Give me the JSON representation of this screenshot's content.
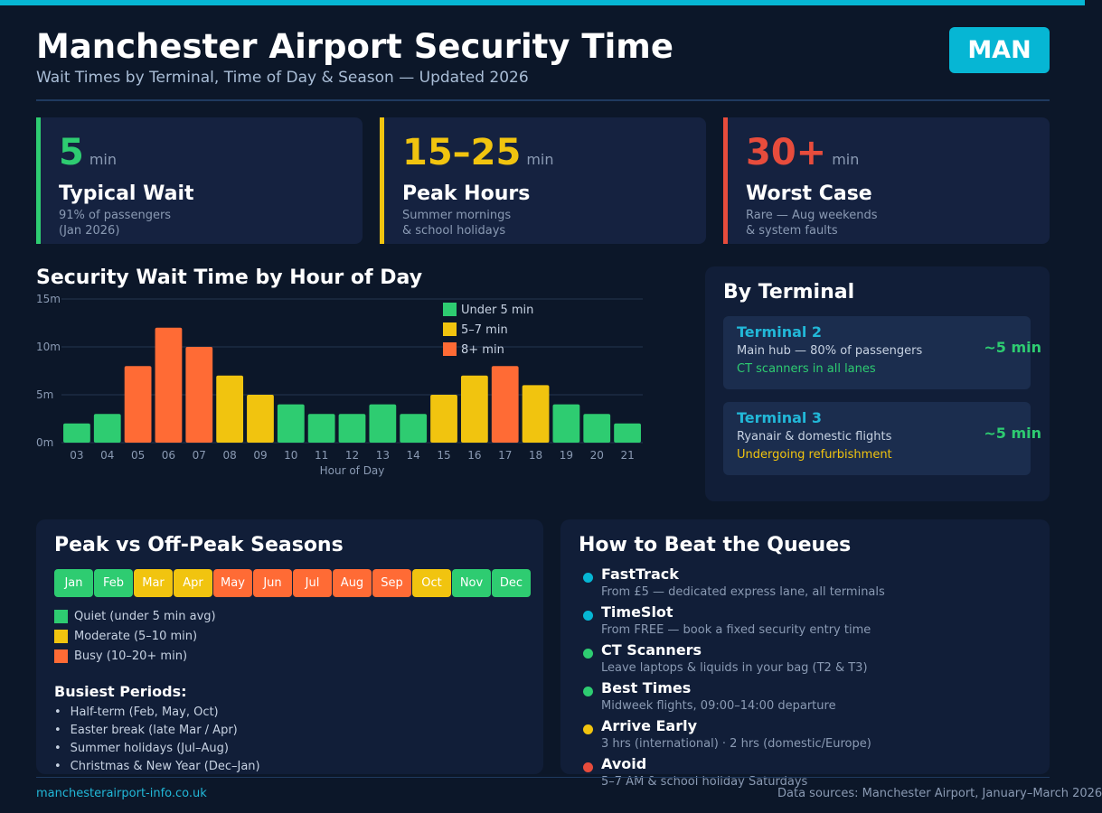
{
  "header": {
    "title": "Manchester Airport Security Time",
    "subtitle": "Wait Times by Terminal, Time of Day & Season — Updated 2026",
    "badge": "MAN"
  },
  "stats": [
    {
      "value": "5",
      "unit": "min",
      "label": "Typical Wait",
      "note1": "91% of passengers",
      "note2": "(Jan 2026)",
      "color": "#2ecc71"
    },
    {
      "value": "15–25",
      "unit": "min",
      "label": "Peak Hours",
      "note1": "Summer mornings",
      "note2": "& school holidays",
      "color": "#f1c40f"
    },
    {
      "value": "30+",
      "unit": "min",
      "label": "Worst Case",
      "note1": "Rare — Aug weekends",
      "note2": "& system faults",
      "color": "#e74c3c"
    }
  ],
  "chart_data": {
    "type": "bar",
    "title": "Security Wait Time by Hour of Day",
    "xlabel": "Hour of Day",
    "ylabel": "",
    "categories": [
      "03",
      "04",
      "05",
      "06",
      "07",
      "08",
      "09",
      "10",
      "11",
      "12",
      "13",
      "14",
      "15",
      "16",
      "17",
      "18",
      "19",
      "20",
      "21"
    ],
    "values": [
      2,
      3,
      8,
      12,
      10,
      7,
      5,
      4,
      3,
      3,
      4,
      3,
      5,
      7,
      8,
      6,
      4,
      3,
      2
    ],
    "ylim": [
      0,
      15
    ],
    "yticks": [
      "0m",
      "5m",
      "10m",
      "15m"
    ],
    "grid": true,
    "legend_position": "top-right",
    "legend": [
      {
        "label": "Under 5 min",
        "color": "#2ecc71"
      },
      {
        "label": "5–7 min",
        "color": "#f1c40f"
      },
      {
        "label": "8+ min",
        "color": "#ff6b35"
      }
    ]
  },
  "terminals": {
    "title": "By Terminal",
    "items": [
      {
        "name": "Terminal 2",
        "desc": "Main hub — 80% of passengers",
        "note": "CT scanners in all lanes",
        "note_color": "#2ecc71",
        "wait": "~5 min"
      },
      {
        "name": "Terminal 3",
        "desc": "Ryanair & domestic flights",
        "note": "Undergoing refurbishment",
        "note_color": "#f1c40f",
        "wait": "~5 min"
      }
    ]
  },
  "seasons": {
    "title": "Peak vs Off-Peak Seasons",
    "months": [
      {
        "label": "Jan",
        "level": "quiet"
      },
      {
        "label": "Feb",
        "level": "quiet"
      },
      {
        "label": "Mar",
        "level": "moderate"
      },
      {
        "label": "Apr",
        "level": "moderate"
      },
      {
        "label": "May",
        "level": "busy"
      },
      {
        "label": "Jun",
        "level": "busy"
      },
      {
        "label": "Jul",
        "level": "busy"
      },
      {
        "label": "Aug",
        "level": "busy"
      },
      {
        "label": "Sep",
        "level": "busy"
      },
      {
        "label": "Oct",
        "level": "moderate"
      },
      {
        "label": "Nov",
        "level": "quiet"
      },
      {
        "label": "Dec",
        "level": "quiet"
      }
    ],
    "level_colors": {
      "quiet": "#2ecc71",
      "moderate": "#f1c40f",
      "busy": "#ff6b35"
    },
    "legend": [
      {
        "label": "Quiet (under 5 min avg)",
        "color": "#2ecc71"
      },
      {
        "label": "Moderate (5–10 min)",
        "color": "#f1c40f"
      },
      {
        "label": "Busy (10–20+ min)",
        "color": "#ff6b35"
      }
    ],
    "busiest_title": "Busiest Periods:",
    "busiest": [
      "Half-term (Feb, May, Oct)",
      "Easter break (late Mar / Apr)",
      "Summer holidays (Jul–Aug)",
      "Christmas & New Year (Dec–Jan)"
    ]
  },
  "tips": {
    "title": "How to Beat the Queues",
    "items": [
      {
        "title": "FastTrack",
        "desc": "From £5 — dedicated express lane, all terminals",
        "color": "#06b6d4"
      },
      {
        "title": "TimeSlot",
        "desc": "From FREE — book a fixed security entry time",
        "color": "#06b6d4"
      },
      {
        "title": "CT Scanners",
        "desc": "Leave laptops & liquids in your bag (T2 & T3)",
        "color": "#2ecc71"
      },
      {
        "title": "Best Times",
        "desc": "Midweek flights, 09:00–14:00 departure",
        "color": "#2ecc71"
      },
      {
        "title": "Arrive Early",
        "desc": "3 hrs (international) · 2 hrs (domestic/Europe)",
        "color": "#f1c40f"
      },
      {
        "title": "Avoid",
        "desc": "5–7 AM & school holiday Saturdays",
        "color": "#e74c3c"
      }
    ]
  },
  "footer": {
    "left": "manchesterairport-info.co.uk",
    "right": "Data sources: Manchester Airport, January–March 2026"
  }
}
